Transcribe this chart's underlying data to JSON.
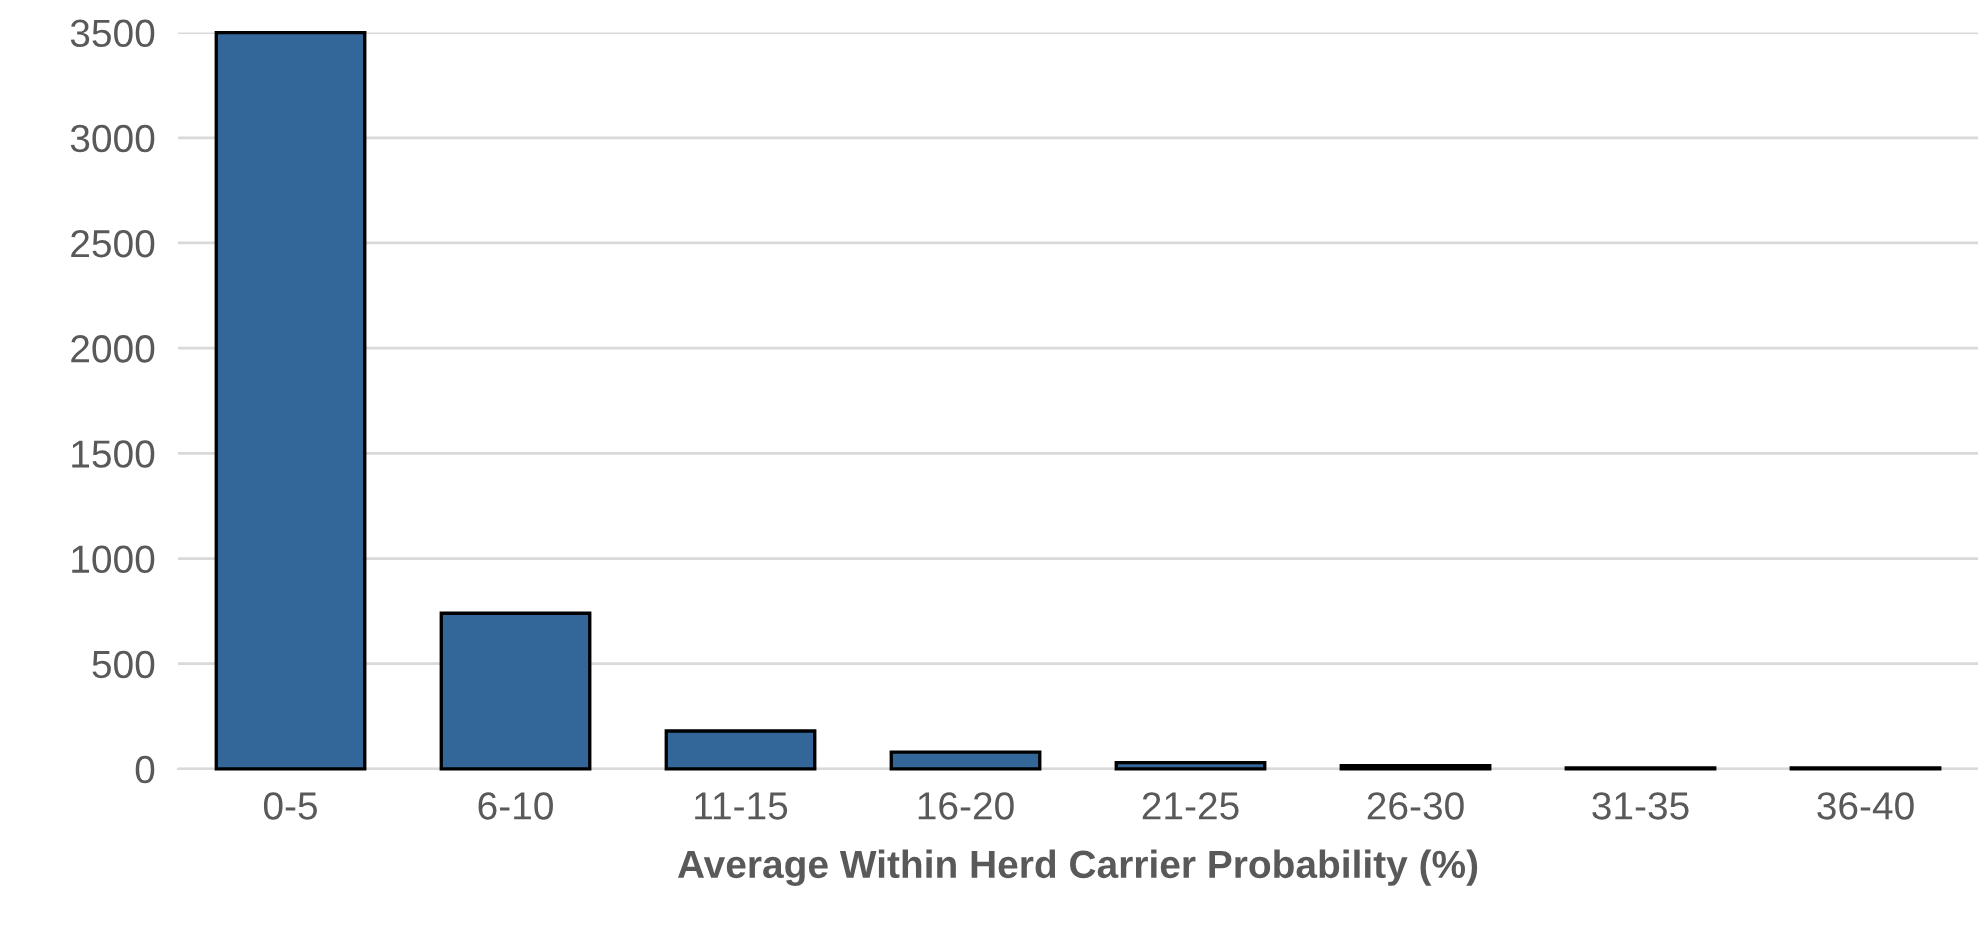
{
  "chart_data": {
    "type": "bar",
    "xlabel": "Average Within Herd Carrier Probability (%)",
    "categories": [
      "0-5",
      "6-10",
      "11-15",
      "16-20",
      "21-25",
      "26-30",
      "31-35",
      "36-40"
    ],
    "values": [
      3500,
      740,
      180,
      80,
      30,
      15,
      5,
      5
    ],
    "color": "#336699",
    "ylim": [
      0,
      3500
    ],
    "yticks": [
      0,
      500,
      1000,
      1500,
      2000,
      2500,
      3000,
      3500
    ],
    "grid": "y"
  }
}
